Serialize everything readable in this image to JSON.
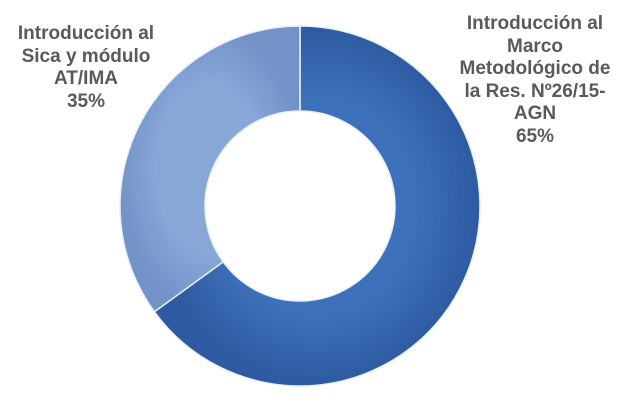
{
  "chart_data": {
    "type": "pie",
    "variant": "donut",
    "title": "",
    "categories": [
      "Introducción al Sica y módulo AT/IMA",
      "Introducción al Marco Metodológico de la Res. Nº26/15-AGN"
    ],
    "values": [
      35,
      65
    ],
    "value_labels": [
      "35%",
      "65%"
    ],
    "label_lines": [
      [
        "Introducción al",
        "Sica y módulo",
        "AT/IMA"
      ],
      [
        "Introducción al",
        "Marco",
        "Metodológico de",
        "la Res. Nº26/15-",
        "AGN"
      ]
    ],
    "colors": [
      "#7f9fd0",
      "#3464ad"
    ],
    "legend": "none",
    "data_labels": "outside"
  }
}
